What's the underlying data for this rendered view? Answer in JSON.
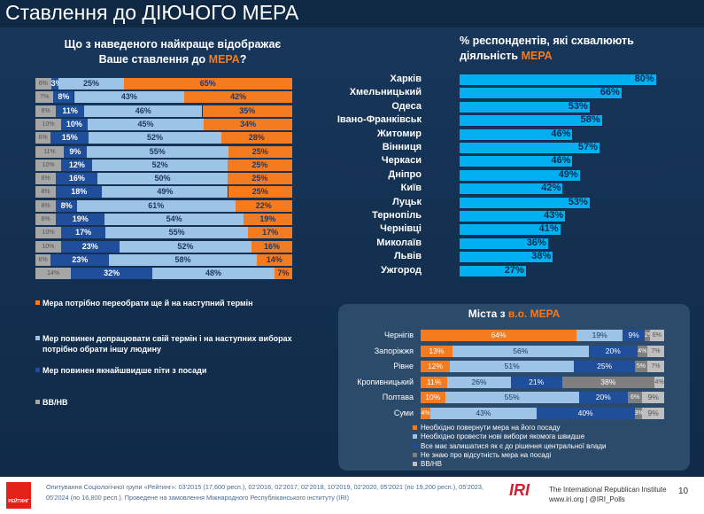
{
  "page": {
    "title": "Ставлення до ДІЮЧОГО МЕРА",
    "page_number": "10"
  },
  "colors": {
    "orange": "#f47b20",
    "light_blue": "#9dc3e6",
    "dark_blue": "#1f4e9a",
    "grey": "#a6a6a6",
    "cyan": "#00b0f0"
  },
  "attitude": {
    "title_main": "Що з наведеного найкраще відображає Ваше ставлення до ",
    "title_accent": "МЕРА",
    "title_end": "?",
    "rows": [
      {
        "nv": "6%",
        "dark": "3%",
        "light": "25%",
        "orange": "65%",
        "v": [
          6,
          3,
          25,
          65
        ]
      },
      {
        "nv": "7%",
        "dark": "8%",
        "light": "43%",
        "orange": "42%",
        "v": [
          7,
          8,
          43,
          42
        ]
      },
      {
        "nv": "8%",
        "dark": "11%",
        "light": "46%",
        "orange": "35%",
        "v": [
          8,
          11,
          46,
          35
        ]
      },
      {
        "nv": "10%",
        "dark": "10%",
        "light": "45%",
        "orange": "34%",
        "v": [
          10,
          10,
          45,
          34
        ]
      },
      {
        "nv": "6%",
        "dark": "15%",
        "light": "52%",
        "orange": "28%",
        "v": [
          6,
          15,
          52,
          28
        ]
      },
      {
        "nv": "11%",
        "dark": "9%",
        "light": "55%",
        "orange": "25%",
        "v": [
          11,
          9,
          55,
          25
        ]
      },
      {
        "nv": "10%",
        "dark": "12%",
        "light": "52%",
        "orange": "25%",
        "v": [
          10,
          12,
          52,
          25
        ]
      },
      {
        "nv": "8%",
        "dark": "16%",
        "light": "50%",
        "orange": "25%",
        "v": [
          8,
          16,
          50,
          25
        ]
      },
      {
        "nv": "8%",
        "dark": "18%",
        "light": "49%",
        "orange": "25%",
        "v": [
          8,
          18,
          49,
          25
        ]
      },
      {
        "nv": "8%",
        "dark": "8%",
        "light": "61%",
        "orange": "22%",
        "v": [
          8,
          8,
          61,
          22
        ]
      },
      {
        "nv": "8%",
        "dark": "19%",
        "light": "54%",
        "orange": "19%",
        "v": [
          8,
          19,
          54,
          19
        ]
      },
      {
        "nv": "10%",
        "dark": "17%",
        "light": "55%",
        "orange": "17%",
        "v": [
          10,
          17,
          55,
          17
        ]
      },
      {
        "nv": "10%",
        "dark": "23%",
        "light": "52%",
        "orange": "16%",
        "v": [
          10,
          23,
          52,
          16
        ]
      },
      {
        "nv": "6%",
        "dark": "23%",
        "light": "58%",
        "orange": "14%",
        "v": [
          6,
          23,
          58,
          14
        ]
      },
      {
        "nv": "14%",
        "dark": "32%",
        "light": "48%",
        "orange": "7%",
        "v": [
          14,
          32,
          48,
          7
        ]
      }
    ],
    "legend": [
      "Мера  потрібно переобрати ще й на наступний термін",
      "Мер повинен допрацювати свій термін і на наступних виборах потрібно обрати іншу людину",
      "Мер повинен якнайшвидше піти з посади",
      "ВВ/НВ"
    ]
  },
  "chart_data": [
    {
      "type": "bar",
      "title": "Що з наведеного найкраще відображає Ваше ставлення до МЕРА?",
      "stacked": true,
      "categories": [
        "Харків",
        "Хмельницький",
        "Одеса",
        "Івано-Франківськ",
        "Житомир",
        "Вінниця",
        "Черкаси",
        "Дніпро",
        "Київ",
        "Луцьк",
        "Тернопіль",
        "Чернівці",
        "Миколаїв",
        "Львів",
        "Ужгород"
      ],
      "series": [
        {
          "name": "ВВ/НВ",
          "values": [
            6,
            7,
            8,
            10,
            6,
            11,
            10,
            8,
            8,
            8,
            8,
            10,
            10,
            6,
            14
          ]
        },
        {
          "name": "Мер повинен якнайшвидше піти з посади",
          "values": [
            3,
            8,
            11,
            10,
            15,
            9,
            12,
            16,
            18,
            8,
            19,
            17,
            23,
            23,
            32
          ]
        },
        {
          "name": "Мер повинен допрацювати свій термін і на наступних виборах потрібно обрати іншу людину",
          "values": [
            25,
            43,
            46,
            45,
            52,
            55,
            52,
            50,
            49,
            61,
            54,
            55,
            52,
            58,
            48
          ]
        },
        {
          "name": "Мера  потрібно переобрати ще й на наступний термін",
          "values": [
            65,
            42,
            35,
            34,
            28,
            25,
            25,
            25,
            25,
            22,
            19,
            17,
            16,
            14,
            7
          ]
        }
      ]
    },
    {
      "type": "bar",
      "title": "% респондентів, які схвалюють діяльність МЕРА",
      "categories": [
        "Харків",
        "Хмельницький",
        "Одеса",
        "Івано-Франківськ",
        "Житомир",
        "Вінниця",
        "Черкаси",
        "Дніпро",
        "Київ",
        "Луцьк",
        "Тернопіль",
        "Чернівці",
        "Миколаїв",
        "Львів",
        "Ужгород"
      ],
      "values": [
        80,
        66,
        53,
        58,
        46,
        57,
        46,
        49,
        42,
        53,
        43,
        41,
        36,
        38,
        27
      ],
      "labels": [
        "80%",
        "66%",
        "53%",
        "58%",
        "46%",
        "57%",
        "46%",
        "49%",
        "42%",
        "53%",
        "43%",
        "41%",
        "36%",
        "38%",
        "27%"
      ]
    },
    {
      "type": "bar",
      "title": "Міста з в.о. МЕРА",
      "stacked": true,
      "categories": [
        "Чернігів",
        "Запоріжжя",
        "Рівне",
        "Кропивницький",
        "Полтава",
        "Суми"
      ],
      "series": [
        {
          "name": "Необхідно повернути мера на його посаду",
          "values": [
            64,
            13,
            12,
            11,
            10,
            4
          ]
        },
        {
          "name": "Необхідно провести нові вибори якомога швидше",
          "values": [
            19,
            56,
            51,
            26,
            55,
            43
          ]
        },
        {
          "name": "Все має залишатися як є до рішення центральної влади",
          "values": [
            9,
            20,
            25,
            21,
            20,
            40
          ]
        },
        {
          "name": "Не знаю про відсутність мера на посаді",
          "values": [
            2,
            4,
            5,
            38,
            6,
            3
          ]
        },
        {
          "name": "ВВ/НВ",
          "values": [
            6,
            7,
            7,
            4,
            9,
            9
          ]
        }
      ]
    }
  ],
  "approval": {
    "title_main": "% респондентів, які схвалюють діяльність ",
    "title_accent": "МЕРА",
    "cities": [
      "Харків",
      "Хмельницький",
      "Одеса",
      "Івано-Франківськ",
      "Житомир",
      "Вінниця",
      "Черкаси",
      "Дніпро",
      "Київ",
      "Луцьк",
      "Тернопіль",
      "Чернівці",
      "Миколаїв",
      "Львів",
      "Ужгород"
    ],
    "labels": [
      "80%",
      "66%",
      "53%",
      "58%",
      "46%",
      "57%",
      "46%",
      "49%",
      "42%",
      "53%",
      "43%",
      "41%",
      "36%",
      "38%",
      "27%"
    ],
    "values": [
      80,
      66,
      53,
      58,
      46,
      57,
      46,
      49,
      42,
      53,
      43,
      41,
      36,
      38,
      27
    ]
  },
  "acting": {
    "title_main": "Міста з ",
    "title_accent": "в.о. МЕРА",
    "cities": [
      "Чернігів",
      "Запоріжжя",
      "Рівне",
      "Кропивницький",
      "Полтава",
      "Суми"
    ],
    "rows": [
      {
        "v": [
          64,
          19,
          9,
          2,
          6
        ],
        "l": [
          "64%",
          "19%",
          "9%",
          "2%",
          "6%"
        ]
      },
      {
        "v": [
          13,
          56,
          20,
          4,
          7
        ],
        "l": [
          "13%",
          "56%",
          "20%",
          "4%",
          "7%"
        ]
      },
      {
        "v": [
          12,
          51,
          25,
          5,
          7
        ],
        "l": [
          "12%",
          "51%",
          "25%",
          "5%",
          "7%"
        ]
      },
      {
        "v": [
          11,
          26,
          21,
          38,
          4
        ],
        "l": [
          "11%",
          "26%",
          "21%",
          "38%",
          "4%"
        ]
      },
      {
        "v": [
          10,
          55,
          20,
          6,
          9
        ],
        "l": [
          "10%",
          "55%",
          "20%",
          "6%",
          "9%"
        ]
      },
      {
        "v": [
          4,
          43,
          40,
          3,
          9
        ],
        "l": [
          "4%",
          "43%",
          "40%",
          "3%",
          "9%"
        ]
      }
    ],
    "legend": [
      "Необхідно повернути мера на його посаду",
      "Необхідно провести нові вибори якомога швидше",
      "Все має залишатися як є до рішення центральної влади",
      "Не знаю про відсутність мера на посаді",
      "ВВ/НВ"
    ]
  },
  "footer": {
    "source": "Опитування Соціологічної групи «Рейтинг»: 03'2015 (17,600 респ.), 02'2016, 02'2017, 02'2018, 10'2019, 02'2020, 05'2021 (по 19,200 респ.), 05'2023, 05'2024 (по 16,800 респ.). Проведене на замовлення Міжнародного Республіканського інституту (IRI)",
    "logo_text": "РЕЙТИНГ",
    "iri_logo": "IRI",
    "iri_name": "The International Republican Institute",
    "iri_web": "www.iri.org | @IRI_Polls"
  }
}
